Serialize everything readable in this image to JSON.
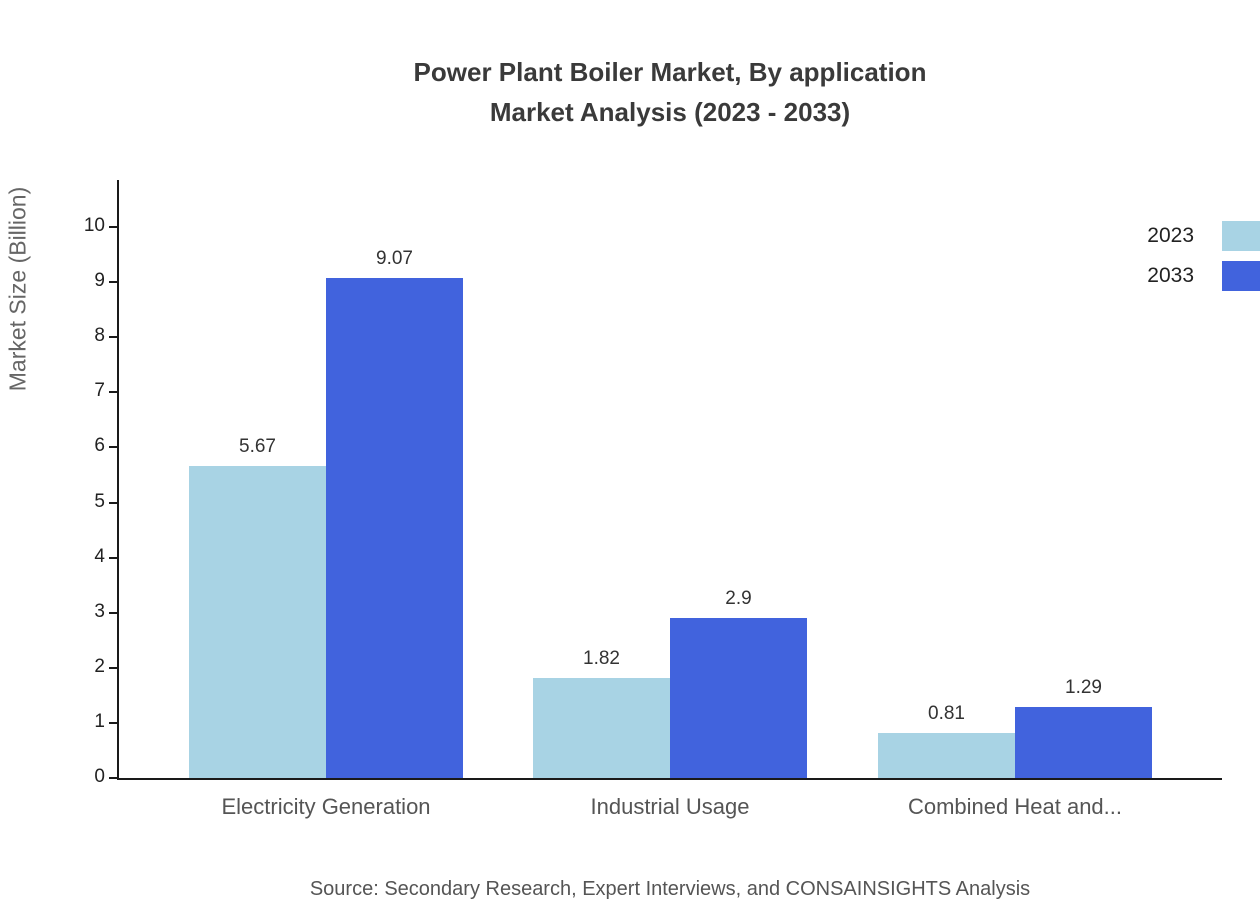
{
  "chart_data": {
    "type": "bar",
    "title": "Power Plant Boiler Market, By application Market Analysis (2023 - 2033)",
    "title_lines": [
      "Power Plant Boiler Market, By application",
      "Market Analysis (2023 - 2033)"
    ],
    "categories": [
      "Electricity Generation",
      "Industrial Usage",
      "Combined Heat and..."
    ],
    "series": [
      {
        "name": "2023",
        "color": "#a8d3e4",
        "values": [
          5.67,
          1.82,
          0.81
        ]
      },
      {
        "name": "2033",
        "color": "#4163dd",
        "values": [
          9.07,
          2.9,
          1.29
        ]
      }
    ],
    "value_labels": [
      [
        "5.67",
        "1.82",
        "0.81"
      ],
      [
        "9.07",
        "2.9",
        "1.29"
      ]
    ],
    "xlabel": "",
    "ylabel": "Market Size (Billion)",
    "ylim": [
      0,
      10
    ],
    "ytick_step": 1,
    "grid": false,
    "legend_position": "top-right",
    "source": "Source: Secondary Research, Expert Interviews, and CONSAINSIGHTS Analysis"
  }
}
